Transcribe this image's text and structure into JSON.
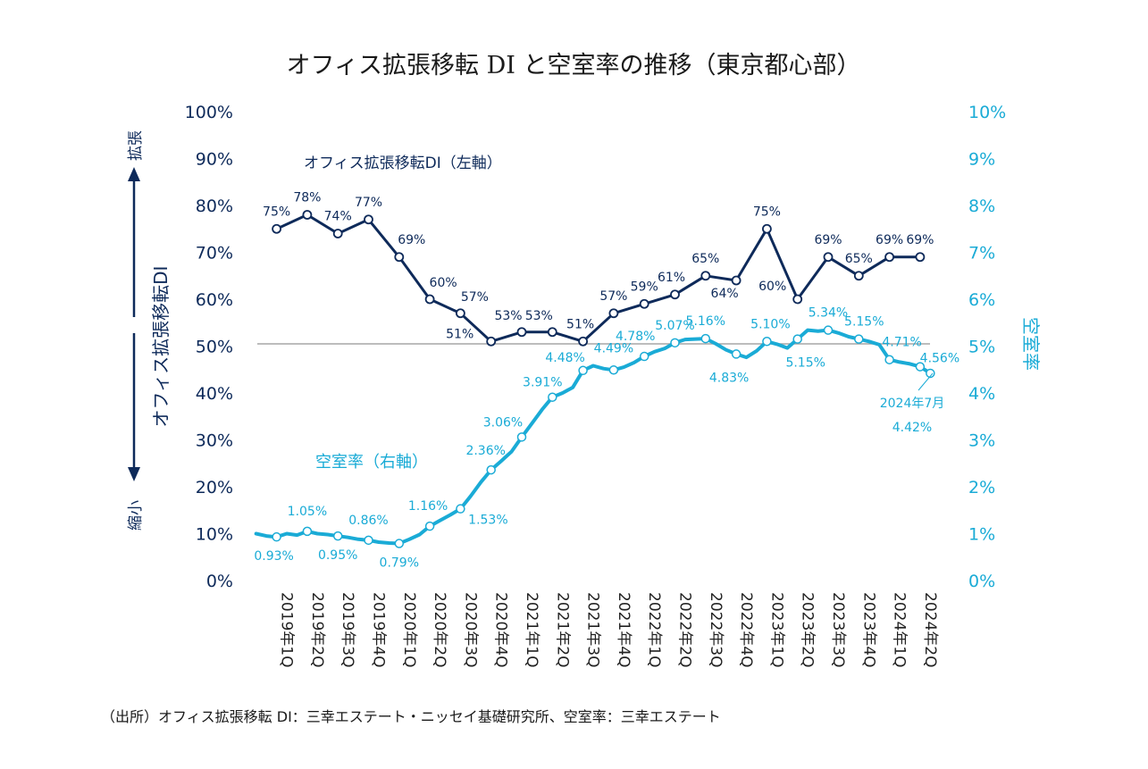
{
  "title": "オフィス拡張移転 DI と空室率の推移（東京都心部）",
  "source": "（出所）オフィス拡張移転 DI：三幸エステート・ニッセイ基礎研究所、空室率：三幸エステート",
  "left_axis": {
    "title": "オフィス拡張移転DI",
    "expand_label": "拡張",
    "shrink_label": "縮小",
    "ticks": [
      "0%",
      "10%",
      "20%",
      "30%",
      "40%",
      "50%",
      "60%",
      "70%",
      "80%",
      "90%",
      "100%"
    ]
  },
  "right_axis": {
    "title": "空室率",
    "ticks": [
      "0%",
      "1%",
      "2%",
      "3%",
      "4%",
      "5%",
      "6%",
      "7%",
      "8%",
      "9%",
      "10%"
    ]
  },
  "annotation": {
    "date": "2024年7月",
    "value": "4.42%"
  },
  "colors": {
    "di": "#0e2a5a",
    "vacancy": "#1aabd6",
    "reference_line": "#a6a6a6"
  },
  "chart_data": {
    "type": "line",
    "title": "オフィス拡張移転 DI と空室率の推移（東京都心部）",
    "categories": [
      "2019年1Q",
      "2019年2Q",
      "2019年3Q",
      "2019年4Q",
      "2020年1Q",
      "2020年2Q",
      "2020年3Q",
      "2020年4Q",
      "2021年1Q",
      "2021年2Q",
      "2021年3Q",
      "2021年4Q",
      "2022年1Q",
      "2022年2Q",
      "2022年3Q",
      "2022年4Q",
      "2023年1Q",
      "2023年2Q",
      "2023年3Q",
      "2023年4Q",
      "2024年1Q",
      "2024年2Q"
    ],
    "reference_line": {
      "axis": "left",
      "value": 50
    },
    "series": [
      {
        "name": "オフィス拡張移転DI（左軸）",
        "axis": "left",
        "ylim": [
          0,
          100
        ],
        "values": [
          75,
          78,
          74,
          77,
          69,
          60,
          57,
          51,
          53,
          53,
          51,
          57,
          59,
          61,
          65,
          64,
          75,
          60,
          69,
          65,
          69,
          69
        ],
        "labels": [
          "75%",
          "78%",
          "74%",
          "77%",
          "69%",
          "60%",
          "57%",
          "51%",
          "53%",
          "53%",
          "51%",
          "57%",
          "59%",
          "61%",
          "65%",
          "64%",
          "75%",
          "60%",
          "69%",
          "65%",
          "69%",
          "69%"
        ]
      },
      {
        "name": "空室率（右軸）",
        "axis": "right",
        "ylim": [
          0,
          10
        ],
        "values": [
          0.93,
          1.05,
          0.95,
          0.86,
          0.79,
          1.16,
          1.53,
          2.36,
          3.06,
          3.91,
          4.48,
          4.49,
          4.78,
          5.07,
          5.16,
          4.83,
          5.1,
          5.15,
          5.34,
          5.15,
          4.71,
          4.56
        ],
        "labels": [
          "0.93%",
          "1.05%",
          "0.95%",
          "0.86%",
          "0.79%",
          "1.16%",
          "1.53%",
          "2.36%",
          "3.06%",
          "3.91%",
          "4.48%",
          "4.49%",
          "4.78%",
          "5.07%",
          "5.16%",
          "4.83%",
          "5.10%",
          "5.15%",
          "5.34%",
          "5.15%",
          "4.71%",
          "4.56%"
        ],
        "monthly": [
          1.0,
          0.95,
          0.93,
          1.0,
          0.97,
          1.05,
          1.0,
          0.98,
          0.95,
          0.92,
          0.88,
          0.86,
          0.82,
          0.8,
          0.79,
          0.88,
          0.98,
          1.16,
          1.28,
          1.4,
          1.53,
          1.8,
          2.1,
          2.36,
          2.55,
          2.75,
          3.06,
          3.35,
          3.65,
          3.91,
          4.0,
          4.12,
          4.48,
          4.58,
          4.52,
          4.49,
          4.55,
          4.65,
          4.78,
          4.88,
          4.95,
          5.07,
          5.14,
          5.15,
          5.16,
          5.05,
          4.92,
          4.83,
          4.76,
          4.9,
          5.1,
          5.04,
          4.96,
          5.15,
          5.34,
          5.32,
          5.34,
          5.28,
          5.2,
          5.15,
          5.1,
          5.03,
          4.71,
          4.66,
          4.62,
          4.56,
          4.42
        ]
      }
    ]
  }
}
